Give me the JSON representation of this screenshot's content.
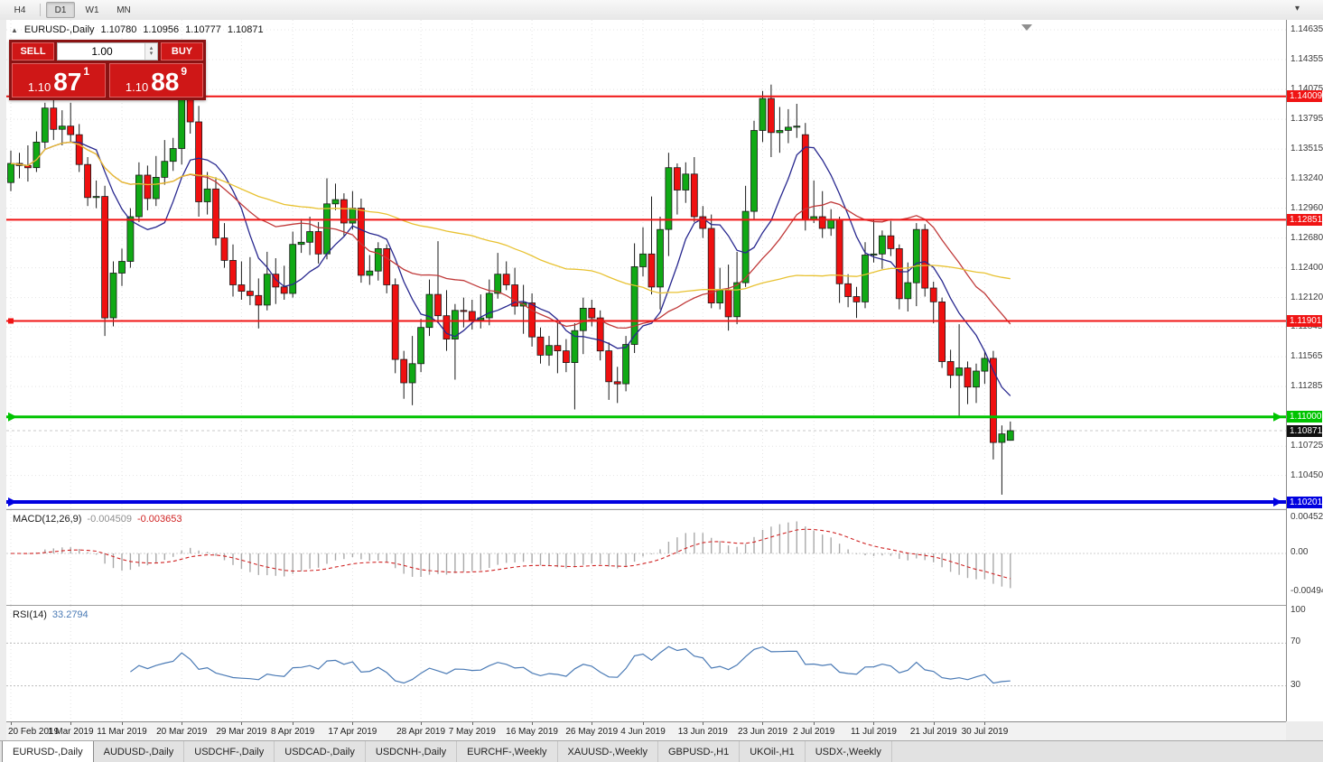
{
  "toolbar": {
    "timeframes": [
      {
        "label": "H4",
        "active": false
      },
      {
        "label": "D1",
        "active": true
      },
      {
        "label": "W1",
        "active": false
      },
      {
        "label": "MN",
        "active": false
      }
    ],
    "corner_icon": "▾"
  },
  "title_overlay": {
    "collapse_icon": "▲",
    "symbol": "EURUSD-,Daily",
    "open": "1.10780",
    "high": "1.10956",
    "low": "1.10777",
    "close": "1.10871"
  },
  "trade_panel": {
    "sell_label": "SELL",
    "buy_label": "BUY",
    "volume": "1.00",
    "sell_price": {
      "prefix": "1.10",
      "big": "87",
      "sup": "1"
    },
    "buy_price": {
      "prefix": "1.10",
      "big": "88",
      "sup": "9"
    }
  },
  "tabs": {
    "active_index": 0,
    "items": [
      "EURUSD-,Daily",
      "AUDUSD-,Daily",
      "USDCHF-,Daily",
      "USDCAD-,Daily",
      "USDCNH-,Daily",
      "EURCHF-,Weekly",
      "XAUUSD-,Weekly",
      "GBPUSD-,H1",
      "UKOil-,H1",
      "USDX-,Weekly"
    ]
  },
  "colors": {
    "bull": "#10a915",
    "bear": "#ef1010",
    "wick": "#1a1a1a",
    "grid": "#e4e4e4",
    "macd_hist": "#a9a9a9",
    "macd_signal": "#d02424",
    "rsi_line": "#4a7ab5",
    "current_badge": "#101010"
  },
  "chart_data": {
    "type": "candlestick",
    "symbol": "EURUSD-",
    "timeframe": "Daily",
    "candles": [
      [
        1.132,
        1.135,
        1.1312,
        1.1338
      ],
      [
        1.1338,
        1.1348,
        1.1324,
        1.1336
      ],
      [
        1.1336,
        1.1355,
        1.1321,
        1.1334
      ],
      [
        1.1334,
        1.1368,
        1.133,
        1.1358
      ],
      [
        1.1358,
        1.1395,
        1.1352,
        1.139
      ],
      [
        1.139,
        1.1398,
        1.136,
        1.137
      ],
      [
        1.137,
        1.1388,
        1.1355,
        1.1373
      ],
      [
        1.1373,
        1.1395,
        1.1358,
        1.1365
      ],
      [
        1.1365,
        1.1375,
        1.133,
        1.1337
      ],
      [
        1.1337,
        1.1344,
        1.1298,
        1.1306
      ],
      [
        1.1306,
        1.1322,
        1.1296,
        1.1307
      ],
      [
        1.1307,
        1.1317,
        1.1176,
        1.1193
      ],
      [
        1.1193,
        1.1246,
        1.1185,
        1.1235
      ],
      [
        1.1235,
        1.1258,
        1.1223,
        1.1246
      ],
      [
        1.1246,
        1.1296,
        1.124,
        1.1288
      ],
      [
        1.1288,
        1.1339,
        1.1283,
        1.1327
      ],
      [
        1.1327,
        1.1336,
        1.1294,
        1.1305
      ],
      [
        1.1305,
        1.1345,
        1.1298,
        1.1325
      ],
      [
        1.1325,
        1.136,
        1.1318,
        1.134
      ],
      [
        1.134,
        1.1362,
        1.1331,
        1.1352
      ],
      [
        1.1352,
        1.1437,
        1.1337,
        1.1415
      ],
      [
        1.1415,
        1.1428,
        1.1366,
        1.1377
      ],
      [
        1.1377,
        1.1392,
        1.1288,
        1.1302
      ],
      [
        1.1302,
        1.133,
        1.129,
        1.1314
      ],
      [
        1.1314,
        1.1325,
        1.1261,
        1.1268
      ],
      [
        1.1268,
        1.1282,
        1.124,
        1.1247
      ],
      [
        1.1247,
        1.1262,
        1.1213,
        1.1224
      ],
      [
        1.1224,
        1.1246,
        1.121,
        1.1218
      ],
      [
        1.1218,
        1.125,
        1.1205,
        1.1214
      ],
      [
        1.1214,
        1.123,
        1.1183,
        1.1205
      ],
      [
        1.1205,
        1.1255,
        1.12,
        1.1234
      ],
      [
        1.1234,
        1.1249,
        1.1206,
        1.1222
      ],
      [
        1.1222,
        1.1242,
        1.121,
        1.1216
      ],
      [
        1.1216,
        1.1274,
        1.1212,
        1.1262
      ],
      [
        1.1262,
        1.1286,
        1.1254,
        1.1264
      ],
      [
        1.1264,
        1.1288,
        1.1252,
        1.1274
      ],
      [
        1.1274,
        1.1283,
        1.1244,
        1.1253
      ],
      [
        1.1253,
        1.1324,
        1.1248,
        1.13
      ],
      [
        1.13,
        1.1319,
        1.1294,
        1.1304
      ],
      [
        1.1304,
        1.131,
        1.127,
        1.1282
      ],
      [
        1.1282,
        1.1312,
        1.1276,
        1.1296
      ],
      [
        1.1296,
        1.1305,
        1.1226,
        1.1233
      ],
      [
        1.1233,
        1.1252,
        1.1224,
        1.1237
      ],
      [
        1.1237,
        1.1264,
        1.1228,
        1.1258
      ],
      [
        1.1258,
        1.1262,
        1.1216,
        1.1224
      ],
      [
        1.1224,
        1.123,
        1.1141,
        1.1154
      ],
      [
        1.1154,
        1.1162,
        1.1117,
        1.1132
      ],
      [
        1.1132,
        1.1176,
        1.1111,
        1.115
      ],
      [
        1.115,
        1.1192,
        1.1142,
        1.1184
      ],
      [
        1.1184,
        1.1229,
        1.1176,
        1.1215
      ],
      [
        1.1215,
        1.1265,
        1.1188,
        1.1195
      ],
      [
        1.1195,
        1.1219,
        1.1162,
        1.1173
      ],
      [
        1.1173,
        1.1206,
        1.1135,
        1.12
      ],
      [
        1.12,
        1.1212,
        1.1184,
        1.1199
      ],
      [
        1.1199,
        1.121,
        1.1182,
        1.1191
      ],
      [
        1.1191,
        1.1215,
        1.1183,
        1.1193
      ],
      [
        1.1193,
        1.1229,
        1.1186,
        1.1216
      ],
      [
        1.1216,
        1.1254,
        1.1211,
        1.1234
      ],
      [
        1.1234,
        1.1246,
        1.1219,
        1.1224
      ],
      [
        1.1224,
        1.124,
        1.1196,
        1.1204
      ],
      [
        1.1204,
        1.1224,
        1.1178,
        1.1207
      ],
      [
        1.1207,
        1.1216,
        1.1166,
        1.1175
      ],
      [
        1.1175,
        1.1184,
        1.115,
        1.1158
      ],
      [
        1.1158,
        1.1176,
        1.1148,
        1.1167
      ],
      [
        1.1167,
        1.1188,
        1.1141,
        1.1162
      ],
      [
        1.1162,
        1.1173,
        1.1142,
        1.1151
      ],
      [
        1.1151,
        1.1188,
        1.1107,
        1.1181
      ],
      [
        1.1181,
        1.1212,
        1.1159,
        1.1202
      ],
      [
        1.1202,
        1.121,
        1.1185,
        1.1193
      ],
      [
        1.1193,
        1.12,
        1.1153,
        1.1162
      ],
      [
        1.1162,
        1.117,
        1.1116,
        1.1133
      ],
      [
        1.1133,
        1.1147,
        1.1113,
        1.1131
      ],
      [
        1.1131,
        1.1176,
        1.1124,
        1.1168
      ],
      [
        1.1168,
        1.1263,
        1.116,
        1.1241
      ],
      [
        1.1241,
        1.1278,
        1.1232,
        1.1253
      ],
      [
        1.1253,
        1.1307,
        1.1215,
        1.1222
      ],
      [
        1.1222,
        1.1288,
        1.1201,
        1.1276
      ],
      [
        1.1276,
        1.1348,
        1.1251,
        1.1334
      ],
      [
        1.1334,
        1.1338,
        1.129,
        1.1313
      ],
      [
        1.1313,
        1.1339,
        1.1301,
        1.1328
      ],
      [
        1.1328,
        1.1344,
        1.1283,
        1.1288
      ],
      [
        1.1288,
        1.1298,
        1.1268,
        1.1277
      ],
      [
        1.1277,
        1.129,
        1.1202,
        1.1207
      ],
      [
        1.1207,
        1.124,
        1.1201,
        1.1219
      ],
      [
        1.1219,
        1.1243,
        1.1181,
        1.1194
      ],
      [
        1.1194,
        1.1255,
        1.1187,
        1.1226
      ],
      [
        1.1226,
        1.1317,
        1.1222,
        1.1293
      ],
      [
        1.1293,
        1.1378,
        1.1285,
        1.1369
      ],
      [
        1.1369,
        1.1406,
        1.1358,
        1.1399
      ],
      [
        1.1399,
        1.1412,
        1.1344,
        1.1367
      ],
      [
        1.1367,
        1.1391,
        1.1348,
        1.1369
      ],
      [
        1.1369,
        1.1389,
        1.1357,
        1.1372
      ],
      [
        1.1372,
        1.1394,
        1.1362,
        1.1373
      ],
      [
        1.1365,
        1.1376,
        1.1275,
        1.1285
      ],
      [
        1.1285,
        1.1322,
        1.1282,
        1.1288
      ],
      [
        1.1288,
        1.1312,
        1.1268,
        1.1277
      ],
      [
        1.1277,
        1.1295,
        1.127,
        1.1285
      ],
      [
        1.1285,
        1.1288,
        1.1207,
        1.1225
      ],
      [
        1.1225,
        1.1234,
        1.1203,
        1.1213
      ],
      [
        1.1213,
        1.1222,
        1.1193,
        1.1208
      ],
      [
        1.1208,
        1.1264,
        1.1202,
        1.1252
      ],
      [
        1.1252,
        1.1286,
        1.1245,
        1.1253
      ],
      [
        1.1253,
        1.1275,
        1.1239,
        1.127
      ],
      [
        1.127,
        1.1284,
        1.1251,
        1.1258
      ],
      [
        1.1258,
        1.1262,
        1.1201,
        1.1211
      ],
      [
        1.1211,
        1.1245,
        1.1199,
        1.1226
      ],
      [
        1.1226,
        1.1282,
        1.1204,
        1.1276
      ],
      [
        1.1276,
        1.1281,
        1.1213,
        1.1221
      ],
      [
        1.1221,
        1.1227,
        1.1188,
        1.1208
      ],
      [
        1.1208,
        1.1212,
        1.1146,
        1.1152
      ],
      [
        1.1152,
        1.1163,
        1.1127,
        1.1139
      ],
      [
        1.1139,
        1.1187,
        1.1101,
        1.1146
      ],
      [
        1.1146,
        1.1152,
        1.1112,
        1.1128
      ],
      [
        1.1128,
        1.115,
        1.1113,
        1.1143
      ],
      [
        1.1143,
        1.1162,
        1.1131,
        1.1155
      ],
      [
        1.1155,
        1.1162,
        1.106,
        1.1076
      ],
      [
        1.1076,
        1.1092,
        1.1027,
        1.1084
      ],
      [
        1.1078,
        1.10956,
        1.10777,
        1.10871
      ]
    ],
    "x_ticks": [
      {
        "i": 0,
        "label": "20 Feb 2019"
      },
      {
        "i": 7,
        "label": "1 Mar 2019"
      },
      {
        "i": 13,
        "label": "11 Mar 2019"
      },
      {
        "i": 20,
        "label": "20 Mar 2019"
      },
      {
        "i": 27,
        "label": "29 Mar 2019"
      },
      {
        "i": 33,
        "label": "8 Apr 2019"
      },
      {
        "i": 40,
        "label": "17 Apr 2019"
      },
      {
        "i": 48,
        "label": "28 Apr 2019"
      },
      {
        "i": 54,
        "label": "7 May 2019"
      },
      {
        "i": 61,
        "label": "16 May 2019"
      },
      {
        "i": 68,
        "label": "26 May 2019"
      },
      {
        "i": 74,
        "label": "4 Jun 2019"
      },
      {
        "i": 81,
        "label": "13 Jun 2019"
      },
      {
        "i": 88,
        "label": "23 Jun 2019"
      },
      {
        "i": 94,
        "label": "2 Jul 2019"
      },
      {
        "i": 101,
        "label": "11 Jul 2019"
      },
      {
        "i": 108,
        "label": "21 Jul 2019"
      },
      {
        "i": 114,
        "label": "30 Jul 2019"
      }
    ],
    "y_axis_labels": [
      "1.14635",
      "1.14355",
      "1.14075",
      "1.13795",
      "1.13515",
      "1.13240",
      "1.12960",
      "1.12680",
      "1.12400",
      "1.12120",
      "1.11845",
      "1.11565",
      "1.11285",
      "1.10725",
      "1.10450"
    ],
    "hlines": [
      {
        "price": 1.14009,
        "label": "1.14009",
        "color": "#f01414",
        "width": 2
      },
      {
        "price": 1.12851,
        "label": "1.12851",
        "color": "#f01414",
        "width": 2
      },
      {
        "price": 1.11901,
        "label": "1.11901",
        "color": "#f01414",
        "width": 2,
        "handle": true
      },
      {
        "price": 1.11,
        "label": "1.11000",
        "color": "#00c400",
        "width": 3,
        "arrows": true
      },
      {
        "price": 1.10201,
        "label": "1.10201",
        "color": "#0000e0",
        "width": 4,
        "arrows": true
      }
    ],
    "current_price": {
      "value": 1.10871,
      "label": "1.10871"
    },
    "moving_averages": [
      {
        "period": 8,
        "color": "#28288f"
      },
      {
        "period": 21,
        "color": "#c03a3a"
      },
      {
        "period": 55,
        "color": "#e8c232"
      }
    ],
    "indicators": {
      "macd": {
        "title": "MACD(12,26,9)",
        "value_main": "-0.004509",
        "value_signal": "-0.003653",
        "fast": 12,
        "slow": 26,
        "signal": 9,
        "axis": [
          {
            "v": 0.004524,
            "label": "0.004524"
          },
          {
            "v": 0,
            "label": "0.00"
          },
          {
            "v": -0.00494,
            "label": "-0.00494"
          }
        ]
      },
      "rsi": {
        "title": "RSI(14)",
        "value": "33.2794",
        "period": 14,
        "levels": [
          70,
          30
        ],
        "axis": [
          {
            "v": 100,
            "label": "100"
          },
          {
            "v": 70,
            "label": "70"
          },
          {
            "v": 30,
            "label": "30"
          }
        ]
      }
    }
  }
}
